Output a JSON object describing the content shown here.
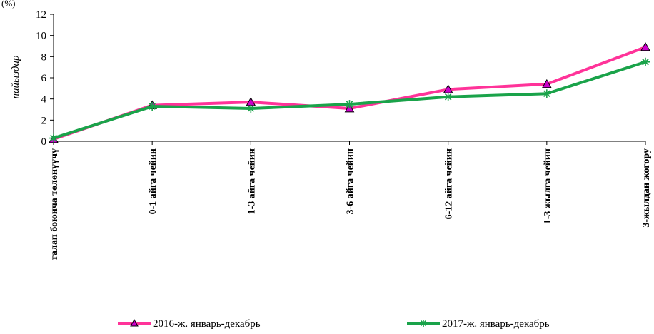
{
  "chart_data": {
    "type": "line",
    "title": "",
    "top_left_fragment": "(%)",
    "ylabel": "пайыздар",
    "xlabel": "",
    "ylim": [
      0,
      12
    ],
    "yticks": [
      0,
      2,
      4,
      6,
      8,
      10,
      12
    ],
    "grid": false,
    "legend_position": "bottom",
    "categories": [
      "талап боюнча төлөнүүчү",
      "0-1 айга чейин",
      "1-3 айга чейин",
      "3-6 айга чейин",
      "6-12 айга чейин",
      "1-3 жылга чейин",
      "3-жылдан жогору"
    ],
    "series": [
      {
        "name": "2016-ж. январь-декабрь",
        "values": [
          0.2,
          3.4,
          3.7,
          3.1,
          4.9,
          5.4,
          8.9
        ],
        "color": "#ff3399",
        "marker": "triangle",
        "marker_fill": "#cc00cc"
      },
      {
        "name": "2017-ж. январь-декабрь",
        "values": [
          0.3,
          3.3,
          3.1,
          3.5,
          4.2,
          4.5,
          7.5
        ],
        "color": "#1aa34a",
        "marker": "asterisk",
        "marker_fill": "#1aa34a"
      }
    ]
  }
}
